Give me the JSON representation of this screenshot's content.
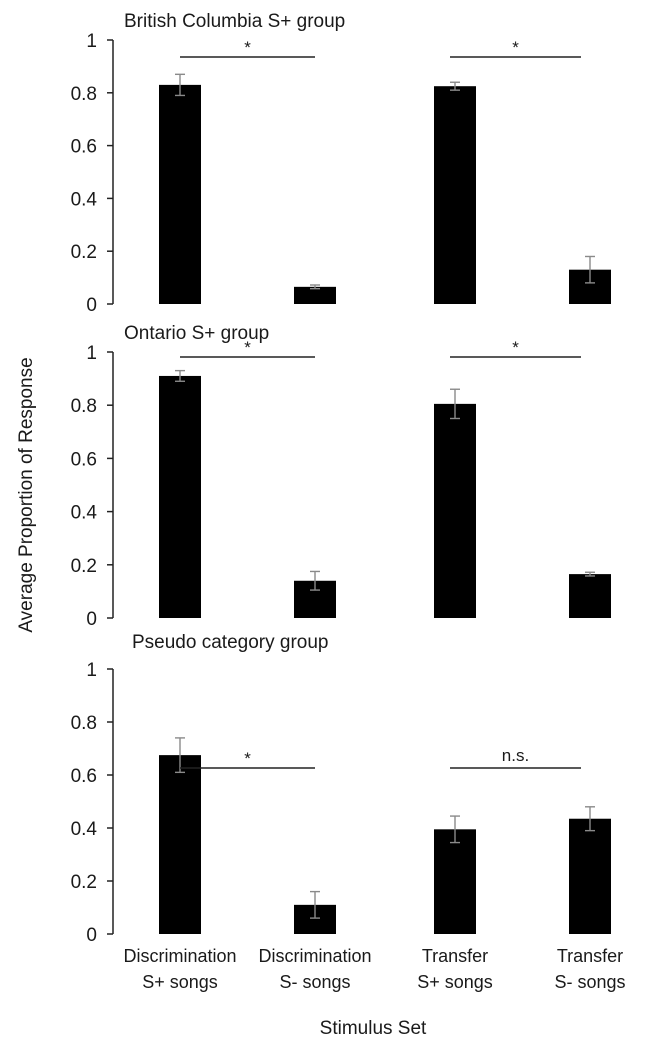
{
  "figure": {
    "ylabel": "Average Proportion of Response",
    "xlabel": "Stimulus Set"
  },
  "chart_data": [
    {
      "type": "bar",
      "title": "British Columbia S+ group",
      "categories": [
        "Discrimination S+ songs",
        "Discrimination S- songs",
        "Transfer S+ songs",
        "Transfer S- songs"
      ],
      "values": [
        0.83,
        0.065,
        0.825,
        0.13
      ],
      "errors": [
        0.04,
        0.007,
        0.015,
        0.05
      ],
      "ylim": [
        0,
        1
      ],
      "yticks": [
        "0",
        "0.2",
        "0.4",
        "0.6",
        "0.8",
        "1"
      ],
      "significance": [
        {
          "from": 0,
          "to": 1,
          "label": "*"
        },
        {
          "from": 2,
          "to": 3,
          "label": "*"
        }
      ]
    },
    {
      "type": "bar",
      "title": "Ontario S+ group",
      "categories": [
        "Discrimination S+ songs",
        "Discrimination S- songs",
        "Transfer S+ songs",
        "Transfer S- songs"
      ],
      "values": [
        0.91,
        0.14,
        0.805,
        0.165
      ],
      "errors": [
        0.02,
        0.035,
        0.055,
        0.007
      ],
      "ylim": [
        0,
        1
      ],
      "yticks": [
        "0",
        "0.2",
        "0.4",
        "0.6",
        "0.8",
        "1"
      ],
      "significance": [
        {
          "from": 0,
          "to": 1,
          "label": "*"
        },
        {
          "from": 2,
          "to": 3,
          "label": "*"
        }
      ]
    },
    {
      "type": "bar",
      "title": "Pseudo category group",
      "categories": [
        "Discrimination S+ songs",
        "Discrimination S- songs",
        "Transfer S+ songs",
        "Transfer S- songs"
      ],
      "values": [
        0.675,
        0.11,
        0.395,
        0.435
      ],
      "errors": [
        0.065,
        0.05,
        0.05,
        0.045
      ],
      "ylim": [
        0,
        1
      ],
      "yticks": [
        "0",
        "0.2",
        "0.4",
        "0.6",
        "0.8",
        "1"
      ],
      "significance": [
        {
          "from": 0,
          "to": 1,
          "label": "*"
        },
        {
          "from": 2,
          "to": 3,
          "label": "n.s."
        }
      ]
    }
  ],
  "x_tick_labels": [
    {
      "line1": "Discrimination",
      "line2": "S+ songs"
    },
    {
      "line1": "Discrimination",
      "line2": "S- songs"
    },
    {
      "line1": "Transfer",
      "line2": "S+ songs"
    },
    {
      "line1": "Transfer",
      "line2": "S- songs"
    }
  ]
}
